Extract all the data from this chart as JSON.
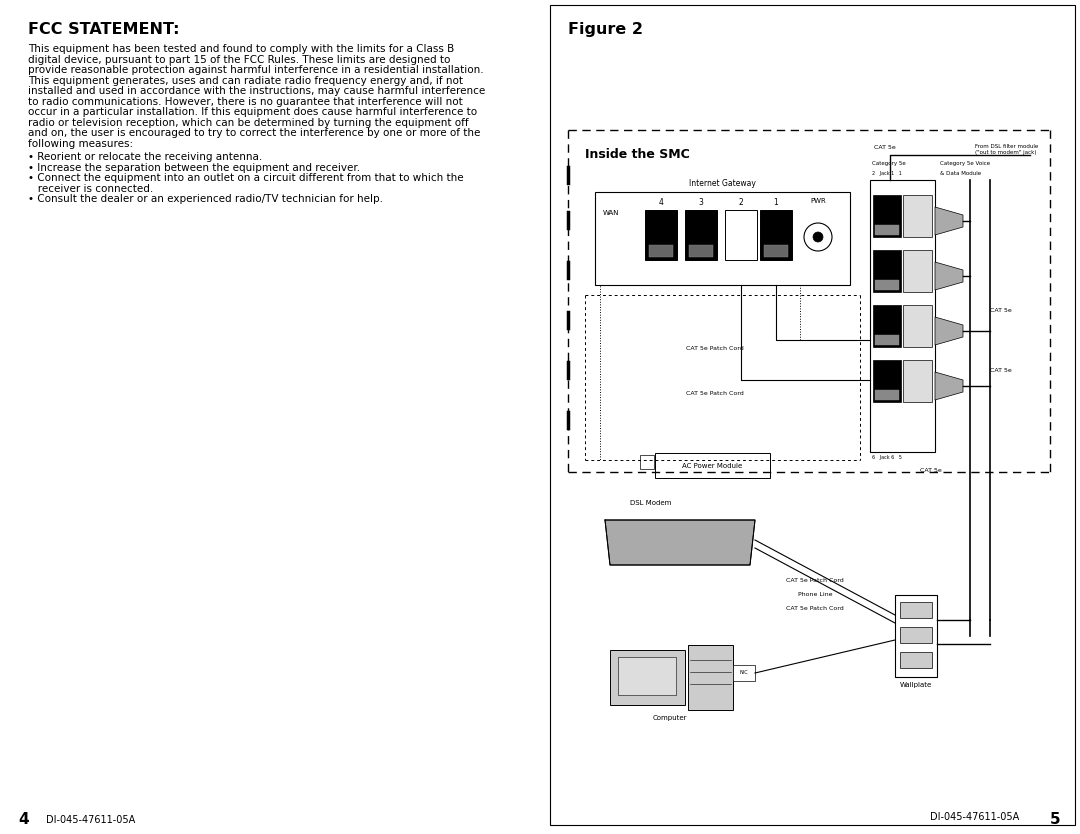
{
  "bg_color": "#ffffff",
  "left_panel": {
    "title": "FCC STATEMENT:",
    "body_lines": [
      "This equipment has been tested and found to comply with the limits for a Class B",
      "digital device, pursuant to part 15 of the FCC Rules. These limits are designed to",
      "provide reasonable protection against harmful interference in a residential installation.",
      "This equipment generates, uses and can radiate radio frequency energy and, if not",
      "installed and used in accordance with the instructions, may cause harmful interference",
      "to radio communications. However, there is no guarantee that interference will not",
      "occur in a particular installation. If this equipment does cause harmful interference to",
      "radio or television reception, which can be determined by turning the equipment off",
      "and on, the user is encouraged to try to correct the interference by one or more of the",
      "following measures:"
    ],
    "bullets": [
      "• Reorient or relocate the receiving antenna.",
      "• Increase the separation between the equipment and receiver.",
      "• Connect the equipment into an outlet on a circuit different from that to which the",
      "   receiver is connected.",
      "• Consult the dealer or an experienced radio/TV technician for help."
    ],
    "footer_num": "4",
    "footer_text": "DI-045-47611-05A"
  },
  "right_panel": {
    "figure_title": "Figure 2",
    "footer_num": "5",
    "footer_text": "DI-045-47611-05A",
    "inside_smc_label": "Inside the SMC",
    "gw_label": "Internet Gateway",
    "wan_label": "WAN",
    "port_labels": [
      "4",
      "3",
      "2",
      "1"
    ],
    "pwr_label": "PWR",
    "cat5e_patch_label1": "CAT 5e Patch Cord",
    "cat5e_patch_label2": "CAT 5e Patch Cord",
    "cat5e_top": "CAT 5e",
    "from_dsl": "From DSL filter module\n(\"out to modem\" jack)",
    "cat5e_right1": "CAT 5e",
    "cat5e_right2": "CAT 5e",
    "cat5e_bottom": "CAT 5e",
    "cat5e_mod_top": "Category 5e",
    "jack_label_top": "2   Jack 1   1",
    "cat5e_voice": "Category 5e Voice",
    "data_module": "& Data Module",
    "jack_label_bot": "6   Jack 6   5",
    "ac_label": "AC Power Module",
    "dsl_label": "DSL Modem",
    "wallplate_label": "Wallplate",
    "computer_label": "Computer",
    "nic_label": "NIC",
    "line1": "CAT 5e Patch Cord",
    "line2": "Phone Line",
    "line3": "CAT 5e Patch Cord"
  }
}
